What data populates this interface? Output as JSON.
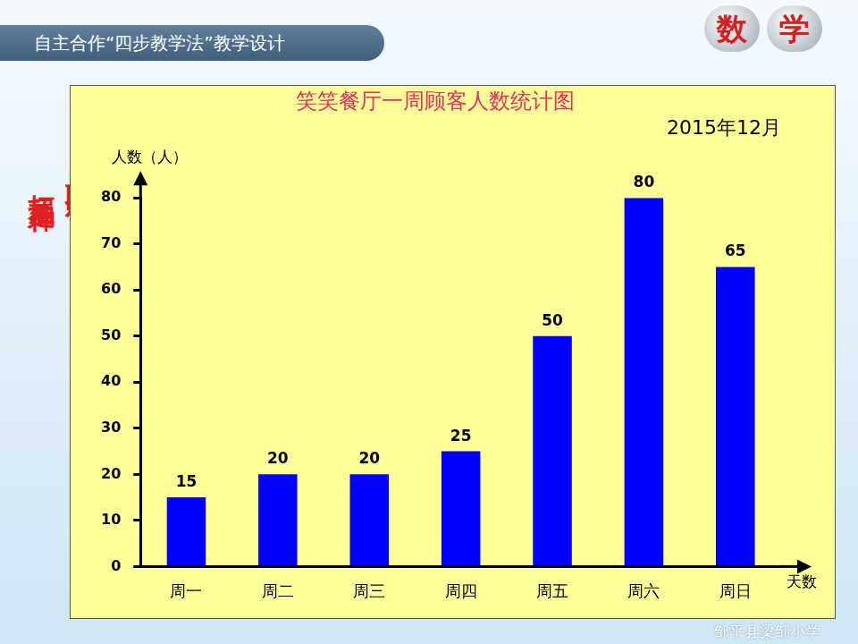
{
  "header": {
    "title": "自主合作“四步教学法”教学设计",
    "badges": [
      "数",
      "学"
    ]
  },
  "side_text": [
    "巩固运用",
    "拓展延伸"
  ],
  "footer": "邹平县梁邹小学",
  "chart_data": {
    "type": "bar",
    "title": "笑笑餐厅一周顾客人数统计图",
    "subtitle": "2015年12月",
    "x_label": "天数",
    "y_label": "人数（人）",
    "categories": [
      "周一",
      "周二",
      "周三",
      "周四",
      "周五",
      "周六",
      "周日"
    ],
    "values": [
      15,
      20,
      20,
      25,
      50,
      80,
      65
    ],
    "color": "#0000ff",
    "ylim": [
      0,
      80
    ],
    "yticks": [
      0,
      10,
      20,
      30,
      40,
      50,
      60,
      70,
      80
    ],
    "grid": false,
    "data_labels": true
  }
}
